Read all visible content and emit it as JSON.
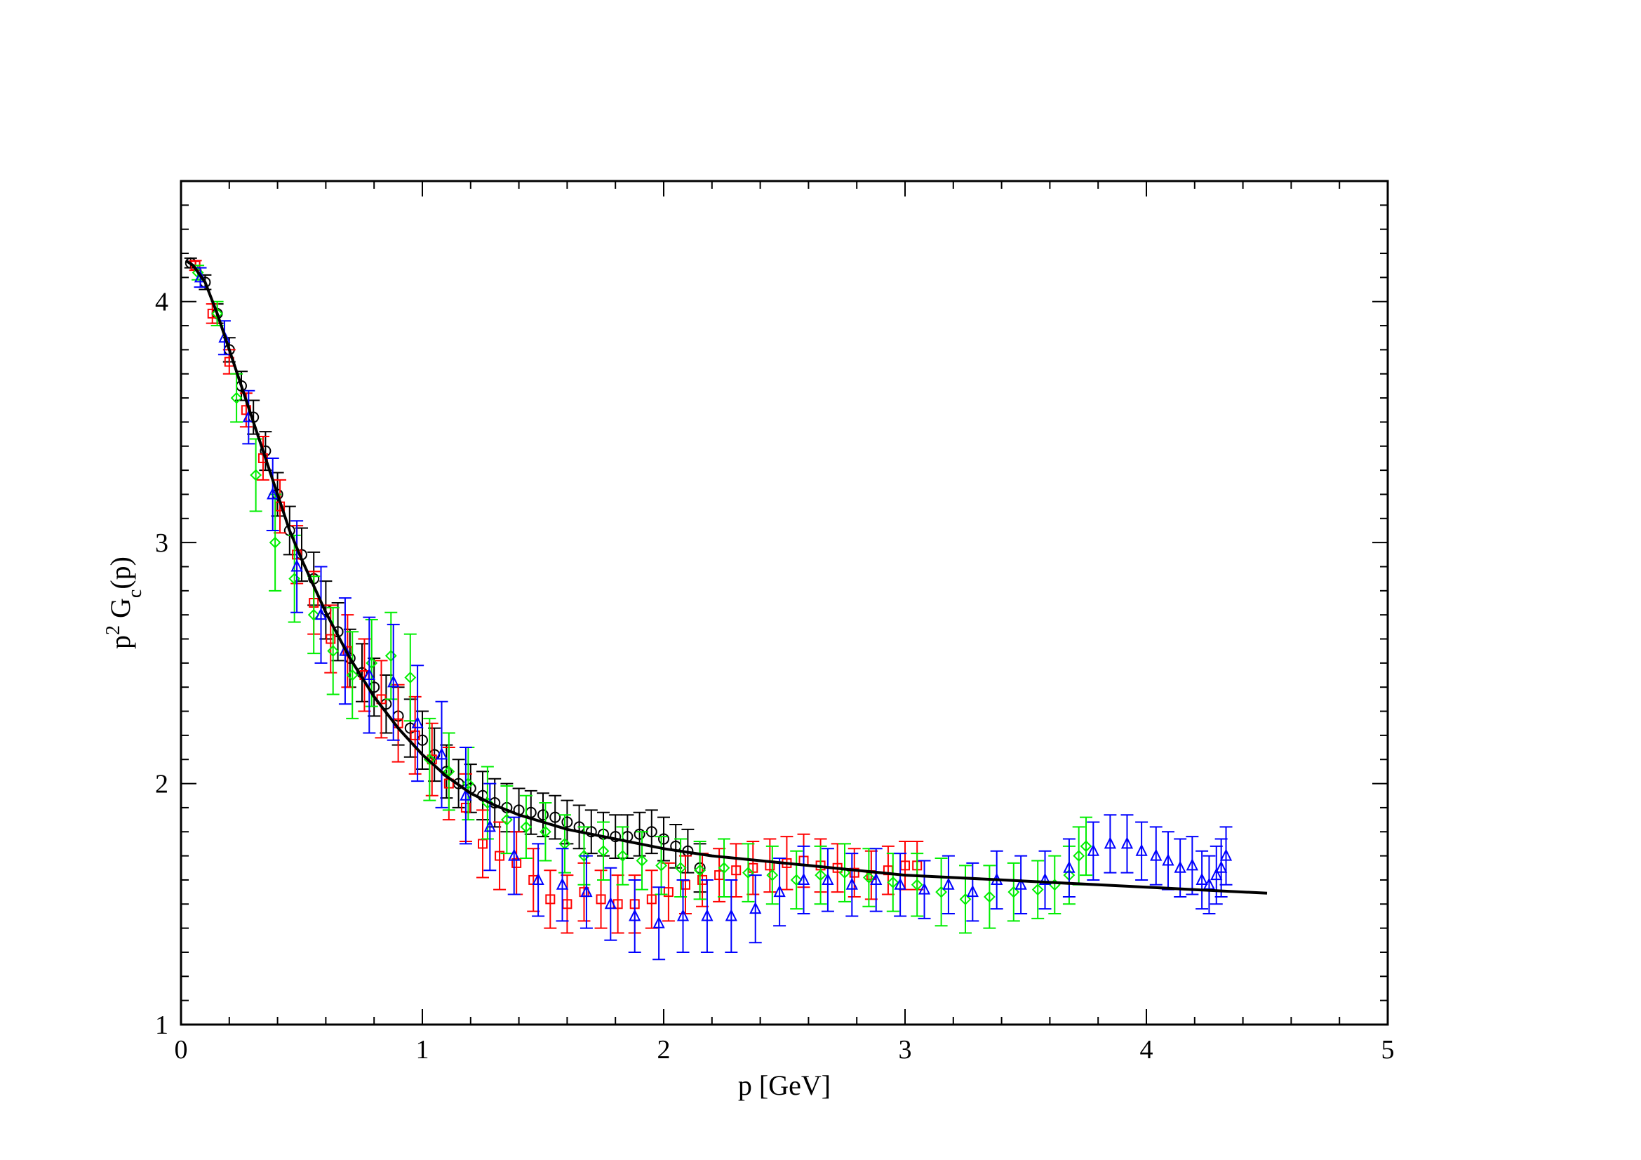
{
  "chart_data": {
    "type": "scatter",
    "title": "",
    "xlabel": "p [GeV]",
    "ylabel_parts": {
      "main": "p",
      "sup": "2",
      "mid": " G",
      "sub": "c",
      "end": "(p)"
    },
    "xlim": [
      0,
      5
    ],
    "ylim": [
      1,
      4.5
    ],
    "x_ticks": [
      "0",
      "1",
      "2",
      "3",
      "4",
      "5"
    ],
    "y_ticks": [
      "1",
      "2",
      "3",
      "4"
    ],
    "x_tick_values": [
      0,
      1,
      2,
      3,
      4,
      5
    ],
    "y_tick_values": [
      1,
      2,
      3,
      4
    ],
    "grid": false,
    "legend": "none",
    "series": [
      {
        "marker": "circle",
        "color": "#000000",
        "x": [
          0.04,
          0.1,
          0.15,
          0.2,
          0.25,
          0.3,
          0.35,
          0.4,
          0.45,
          0.5,
          0.55,
          0.6,
          0.65,
          0.7,
          0.75,
          0.8,
          0.85,
          0.9,
          0.95,
          1.0,
          1.05,
          1.1,
          1.15,
          1.2,
          1.25,
          1.3,
          1.35,
          1.4,
          1.45,
          1.5,
          1.55,
          1.6,
          1.65,
          1.7,
          1.75,
          1.8,
          1.85,
          1.9,
          1.95,
          2.0,
          2.05,
          2.1,
          2.15
        ],
        "y": [
          4.16,
          4.08,
          3.95,
          3.8,
          3.65,
          3.52,
          3.38,
          3.2,
          3.05,
          2.95,
          2.85,
          2.72,
          2.63,
          2.52,
          2.46,
          2.4,
          2.33,
          2.28,
          2.23,
          2.18,
          2.12,
          2.05,
          2.0,
          1.98,
          1.95,
          1.92,
          1.9,
          1.89,
          1.88,
          1.87,
          1.86,
          1.84,
          1.82,
          1.8,
          1.79,
          1.78,
          1.78,
          1.79,
          1.8,
          1.77,
          1.74,
          1.72,
          1.65
        ],
        "err": [
          0.02,
          0.03,
          0.04,
          0.05,
          0.06,
          0.07,
          0.08,
          0.09,
          0.1,
          0.11,
          0.11,
          0.12,
          0.12,
          0.12,
          0.12,
          0.12,
          0.12,
          0.12,
          0.12,
          0.12,
          0.11,
          0.11,
          0.1,
          0.1,
          0.1,
          0.1,
          0.1,
          0.09,
          0.09,
          0.09,
          0.09,
          0.09,
          0.09,
          0.09,
          0.09,
          0.09,
          0.09,
          0.09,
          0.09,
          0.09,
          0.09,
          0.09,
          0.1
        ]
      },
      {
        "marker": "square",
        "color": "#ff0000",
        "x": [
          0.06,
          0.13,
          0.2,
          0.27,
          0.34,
          0.41,
          0.48,
          0.55,
          0.62,
          0.69,
          0.76,
          0.83,
          0.9,
          0.97,
          1.04,
          1.11,
          1.18,
          1.25,
          1.32,
          1.39,
          1.46,
          1.53,
          1.6,
          1.67,
          1.74,
          1.81,
          1.88,
          1.95,
          2.02,
          2.09,
          2.16,
          2.23,
          2.3,
          2.37,
          2.44,
          2.51,
          2.58,
          2.65,
          2.72,
          2.79,
          2.86,
          2.93,
          3.0,
          3.05
        ],
        "y": [
          4.15,
          3.95,
          3.75,
          3.55,
          3.35,
          3.15,
          2.95,
          2.75,
          2.6,
          2.55,
          2.45,
          2.35,
          2.25,
          2.2,
          2.1,
          2.0,
          1.9,
          1.75,
          1.7,
          1.67,
          1.6,
          1.52,
          1.5,
          1.55,
          1.52,
          1.5,
          1.5,
          1.52,
          1.55,
          1.58,
          1.6,
          1.62,
          1.64,
          1.65,
          1.66,
          1.67,
          1.68,
          1.66,
          1.65,
          1.63,
          1.62,
          1.64,
          1.66,
          1.66
        ],
        "err": [
          0.02,
          0.04,
          0.05,
          0.07,
          0.09,
          0.11,
          0.12,
          0.13,
          0.14,
          0.15,
          0.15,
          0.16,
          0.16,
          0.16,
          0.15,
          0.15,
          0.14,
          0.14,
          0.14,
          0.13,
          0.13,
          0.12,
          0.12,
          0.12,
          0.12,
          0.12,
          0.12,
          0.12,
          0.12,
          0.12,
          0.11,
          0.11,
          0.11,
          0.11,
          0.11,
          0.11,
          0.11,
          0.11,
          0.1,
          0.1,
          0.1,
          0.1,
          0.1,
          0.1
        ]
      },
      {
        "marker": "diamond",
        "color": "#00ee00",
        "x": [
          0.07,
          0.15,
          0.23,
          0.31,
          0.39,
          0.47,
          0.55,
          0.63,
          0.71,
          0.79,
          0.87,
          0.95,
          1.03,
          1.11,
          1.19,
          1.27,
          1.35,
          1.43,
          1.51,
          1.59,
          1.67,
          1.75,
          1.83,
          1.91,
          1.99,
          2.07,
          2.15,
          2.25,
          2.35,
          2.45,
          2.55,
          2.65,
          2.75,
          2.85,
          2.95,
          3.05,
          3.15,
          3.25,
          3.35,
          3.45,
          3.55,
          3.62,
          3.68,
          3.72,
          3.75
        ],
        "y": [
          4.12,
          3.95,
          3.6,
          3.28,
          3.0,
          2.85,
          2.7,
          2.55,
          2.45,
          2.5,
          2.53,
          2.44,
          2.1,
          2.05,
          2.0,
          1.92,
          1.85,
          1.82,
          1.8,
          1.75,
          1.7,
          1.72,
          1.7,
          1.68,
          1.66,
          1.65,
          1.64,
          1.65,
          1.63,
          1.62,
          1.6,
          1.62,
          1.63,
          1.61,
          1.59,
          1.58,
          1.55,
          1.52,
          1.53,
          1.55,
          1.56,
          1.58,
          1.62,
          1.7,
          1.74
        ],
        "err": [
          0.03,
          0.05,
          0.1,
          0.15,
          0.2,
          0.18,
          0.16,
          0.18,
          0.18,
          0.18,
          0.18,
          0.18,
          0.17,
          0.16,
          0.15,
          0.15,
          0.14,
          0.13,
          0.12,
          0.12,
          0.12,
          0.12,
          0.12,
          0.12,
          0.12,
          0.12,
          0.12,
          0.12,
          0.12,
          0.12,
          0.12,
          0.12,
          0.12,
          0.12,
          0.12,
          0.13,
          0.14,
          0.14,
          0.13,
          0.12,
          0.12,
          0.12,
          0.12,
          0.12,
          0.12
        ]
      },
      {
        "marker": "triangle",
        "color": "#0000ff",
        "x": [
          0.08,
          0.18,
          0.28,
          0.38,
          0.48,
          0.58,
          0.68,
          0.78,
          0.88,
          0.98,
          1.08,
          1.18,
          1.28,
          1.38,
          1.48,
          1.58,
          1.68,
          1.78,
          1.88,
          1.98,
          2.08,
          2.18,
          2.28,
          2.38,
          2.48,
          2.58,
          2.68,
          2.78,
          2.88,
          2.98,
          3.08,
          3.18,
          3.28,
          3.38,
          3.48,
          3.58,
          3.68,
          3.78,
          3.85,
          3.92,
          3.98,
          4.04,
          4.09,
          4.14,
          4.19,
          4.23,
          4.26,
          4.29,
          4.31,
          4.33
        ],
        "y": [
          4.1,
          3.85,
          3.52,
          3.2,
          2.9,
          2.7,
          2.55,
          2.45,
          2.42,
          2.25,
          2.12,
          1.95,
          1.82,
          1.7,
          1.6,
          1.58,
          1.55,
          1.5,
          1.45,
          1.42,
          1.45,
          1.45,
          1.45,
          1.48,
          1.55,
          1.6,
          1.6,
          1.58,
          1.6,
          1.58,
          1.56,
          1.58,
          1.55,
          1.6,
          1.58,
          1.6,
          1.65,
          1.72,
          1.75,
          1.75,
          1.72,
          1.7,
          1.68,
          1.65,
          1.66,
          1.6,
          1.58,
          1.62,
          1.65,
          1.7
        ],
        "err": [
          0.04,
          0.07,
          0.11,
          0.15,
          0.19,
          0.2,
          0.22,
          0.24,
          0.24,
          0.24,
          0.22,
          0.2,
          0.18,
          0.16,
          0.15,
          0.15,
          0.15,
          0.15,
          0.15,
          0.15,
          0.15,
          0.15,
          0.15,
          0.14,
          0.14,
          0.14,
          0.13,
          0.13,
          0.13,
          0.13,
          0.12,
          0.12,
          0.12,
          0.12,
          0.12,
          0.12,
          0.12,
          0.12,
          0.12,
          0.12,
          0.12,
          0.12,
          0.12,
          0.12,
          0.12,
          0.12,
          0.12,
          0.12,
          0.12,
          0.12
        ]
      }
    ],
    "fit_curve": {
      "color": "#000000",
      "x": [
        0.02,
        0.05,
        0.1,
        0.15,
        0.2,
        0.25,
        0.3,
        0.35,
        0.4,
        0.45,
        0.5,
        0.55,
        0.6,
        0.7,
        0.8,
        0.9,
        1.0,
        1.1,
        1.2,
        1.3,
        1.4,
        1.5,
        1.6,
        1.7,
        1.8,
        1.9,
        2.0,
        2.2,
        2.4,
        2.6,
        2.8,
        3.0,
        3.2,
        3.4,
        3.6,
        3.8,
        4.0,
        4.2,
        4.4,
        4.5
      ],
      "y": [
        4.17,
        4.15,
        4.08,
        3.95,
        3.8,
        3.65,
        3.5,
        3.35,
        3.2,
        3.05,
        2.93,
        2.82,
        2.71,
        2.52,
        2.36,
        2.23,
        2.12,
        2.03,
        1.96,
        1.91,
        1.87,
        1.84,
        1.81,
        1.79,
        1.77,
        1.75,
        1.73,
        1.7,
        1.68,
        1.66,
        1.64,
        1.62,
        1.61,
        1.6,
        1.59,
        1.58,
        1.57,
        1.56,
        1.55,
        1.545
      ]
    }
  }
}
